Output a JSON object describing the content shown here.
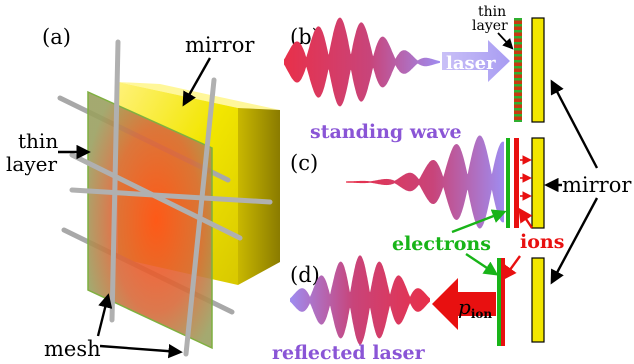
{
  "panels": {
    "a": "(a)",
    "b": "(b)",
    "c": "(c)",
    "d": "(d)"
  },
  "labels": {
    "mirror_a": "mirror",
    "thin_a_line1": "thin",
    "thin_a_line2": "layer",
    "mesh": "mesh",
    "thin_b_line1": "thin",
    "thin_b_line2": "layer",
    "laser": "laser",
    "standing_wave": "standing wave",
    "mirror_right": "mirror",
    "electrons": "electrons",
    "ions": "ions",
    "p_ion_main": "p",
    "p_ion_sub": "ion",
    "reflected_laser": "reflected laser"
  },
  "colors": {
    "mirror_yellow": "#f2e600",
    "mirror_dark": "#9c8c00",
    "thin_layer_red": "#ff4a1a",
    "wave_start": "#e8304a",
    "wave_end": "#9f8cf0",
    "laser_arrow": "#a89cf2",
    "label_purple": "#8a55d6",
    "electron_green": "#18b418",
    "ion_red": "#e81010",
    "mesh_gray": "#a8a8a8"
  }
}
